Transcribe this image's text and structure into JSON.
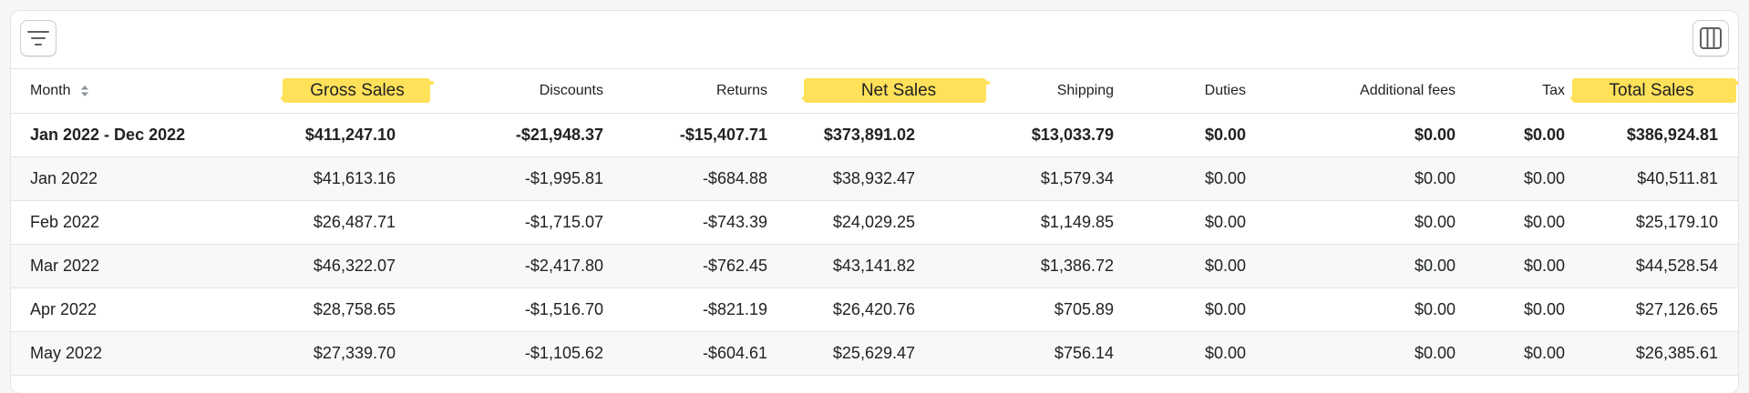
{
  "toolbar": {
    "filter_icon": "filter-lines-icon",
    "columns_icon": "columns-icon"
  },
  "table": {
    "columns": [
      {
        "label": "Month",
        "highlight": false,
        "sortable": true
      },
      {
        "label": "Gross Sales",
        "highlight": true
      },
      {
        "label": "Discounts",
        "highlight": false
      },
      {
        "label": "Returns",
        "highlight": false
      },
      {
        "label": "Net Sales",
        "highlight": true
      },
      {
        "label": "Shipping",
        "highlight": false
      },
      {
        "label": "Duties",
        "highlight": false
      },
      {
        "label": "Additional fees",
        "highlight": false
      },
      {
        "label": "Tax",
        "highlight": false
      },
      {
        "label": "Total Sales",
        "highlight": true
      }
    ],
    "highlight_color": "#ffe15a",
    "rows": [
      [
        "Jan 2022 - Dec 2022",
        "$411,247.10",
        "-$21,948.37",
        "-$15,407.71",
        "$373,891.02",
        "$13,033.79",
        "$0.00",
        "$0.00",
        "$0.00",
        "$386,924.81"
      ],
      [
        "Jan 2022",
        "$41,613.16",
        "-$1,995.81",
        "-$684.88",
        "$38,932.47",
        "$1,579.34",
        "$0.00",
        "$0.00",
        "$0.00",
        "$40,511.81"
      ],
      [
        "Feb 2022",
        "$26,487.71",
        "-$1,715.07",
        "-$743.39",
        "$24,029.25",
        "$1,149.85",
        "$0.00",
        "$0.00",
        "$0.00",
        "$25,179.10"
      ],
      [
        "Mar 2022",
        "$46,322.07",
        "-$2,417.80",
        "-$762.45",
        "$43,141.82",
        "$1,386.72",
        "$0.00",
        "$0.00",
        "$0.00",
        "$44,528.54"
      ],
      [
        "Apr 2022",
        "$28,758.65",
        "-$1,516.70",
        "-$821.19",
        "$26,420.76",
        "$705.89",
        "$0.00",
        "$0.00",
        "$0.00",
        "$27,126.65"
      ],
      [
        "May 2022",
        "$27,339.70",
        "-$1,105.62",
        "-$604.61",
        "$25,629.47",
        "$756.14",
        "$0.00",
        "$0.00",
        "$0.00",
        "$26,385.61"
      ]
    ]
  }
}
